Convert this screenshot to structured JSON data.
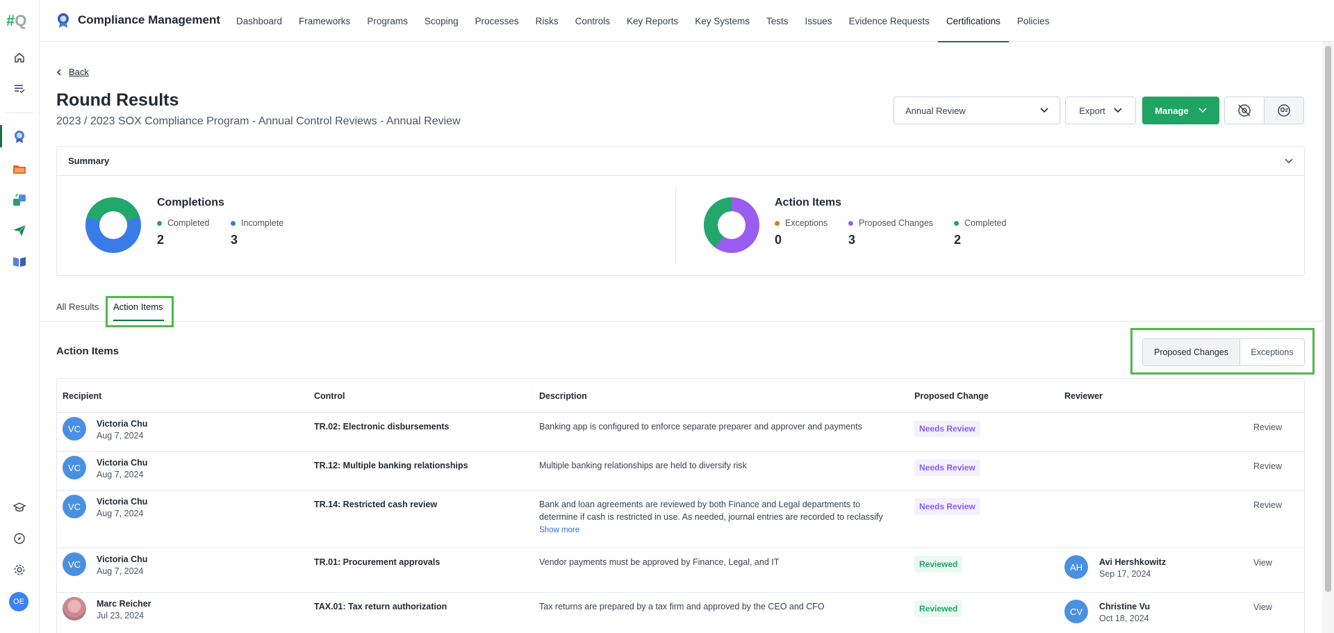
{
  "app": {
    "logo_hash": "#",
    "logo_q": "Q",
    "user_initials": "OE"
  },
  "topnav": {
    "brand": "Compliance Management",
    "items": [
      "Dashboard",
      "Frameworks",
      "Programs",
      "Scoping",
      "Processes",
      "Risks",
      "Controls",
      "Key Reports",
      "Key Systems",
      "Tests",
      "Issues",
      "Evidence Requests",
      "Certifications",
      "Policies"
    ],
    "active": "Certifications"
  },
  "page": {
    "back_label": "Back",
    "title": "Round Results",
    "subtitle": "2023 / 2023 SOX Compliance Program - Annual Control Reviews - Annual Review",
    "round_select_value": "Annual Review",
    "export_label": "Export",
    "manage_label": "Manage"
  },
  "summary": {
    "heading": "Summary",
    "completions": {
      "title": "Completions",
      "items": [
        {
          "label": "Completed",
          "value": "2",
          "color": "#22a86a"
        },
        {
          "label": "Incomplete",
          "value": "3",
          "color": "#3b7be8"
        }
      ]
    },
    "action_items": {
      "title": "Action Items",
      "items": [
        {
          "label": "Exceptions",
          "value": "0",
          "color": "#e07b1a"
        },
        {
          "label": "Proposed Changes",
          "value": "3",
          "color": "#9b5cf0"
        },
        {
          "label": "Completed",
          "value": "2",
          "color": "#22a86a"
        }
      ]
    }
  },
  "tabs": {
    "all_results": "All Results",
    "action_items": "Action Items"
  },
  "section": {
    "title": "Action Items",
    "toggle_on": "Proposed Changes",
    "toggle_off": "Exceptions"
  },
  "table": {
    "headers": {
      "recipient": "Recipient",
      "control": "Control",
      "description": "Description",
      "proposed_change": "Proposed Change",
      "reviewer": "Reviewer"
    },
    "rows": [
      {
        "initials": "VC",
        "name": "Victoria Chu",
        "date": "Aug 7, 2024",
        "control": "TR.02: Electronic disbursements",
        "desc1": "Banking app is configured to enforce separate preparer and approver and payments",
        "desc2": "",
        "show_more": "",
        "status": "Needs Review",
        "reviewer_initials": "",
        "reviewer_name": "",
        "reviewer_date": "",
        "action": "Review"
      },
      {
        "initials": "VC",
        "name": "Victoria Chu",
        "date": "Aug 7, 2024",
        "control": "TR.12: Multiple banking relationships",
        "desc1": "Multiple banking relationships are held to diversify risk",
        "desc2": "",
        "show_more": "",
        "status": "Needs Review",
        "reviewer_initials": "",
        "reviewer_name": "",
        "reviewer_date": "",
        "action": "Review"
      },
      {
        "initials": "VC",
        "name": "Victoria Chu",
        "date": "Aug 7, 2024",
        "control": "TR.14: Restricted cash review",
        "desc1": "Bank and loan agreements are reviewed by both Finance and Legal departments to",
        "desc2": "determine if cash is restricted in use. As needed, journal entries are recorded to reclassify",
        "show_more": "Show more",
        "status": "Needs Review",
        "reviewer_initials": "",
        "reviewer_name": "",
        "reviewer_date": "",
        "action": "Review"
      },
      {
        "initials": "VC",
        "name": "Victoria Chu",
        "date": "Aug 7, 2024",
        "control": "TR.01: Procurement approvals",
        "desc1": "Vendor payments must be approved by Finance, Legal, and IT",
        "desc2": "",
        "show_more": "",
        "status": "Reviewed",
        "reviewer_initials": "AH",
        "reviewer_name": "Avi Hershkowitz",
        "reviewer_date": "Sep 17, 2024",
        "action": "View"
      },
      {
        "initials": "",
        "name": "Marc Reicher",
        "date": "Jul 23, 2024",
        "control": "TAX.01: Tax return authorization",
        "desc1": "Tax returns are prepared by a tax firm and approved by the CEO and CFO",
        "desc2": "",
        "show_more": "",
        "status": "Reviewed",
        "reviewer_initials": "CV",
        "reviewer_name": "Christine Vu",
        "reviewer_date": "Oct 18, 2024",
        "action": "View"
      }
    ]
  }
}
